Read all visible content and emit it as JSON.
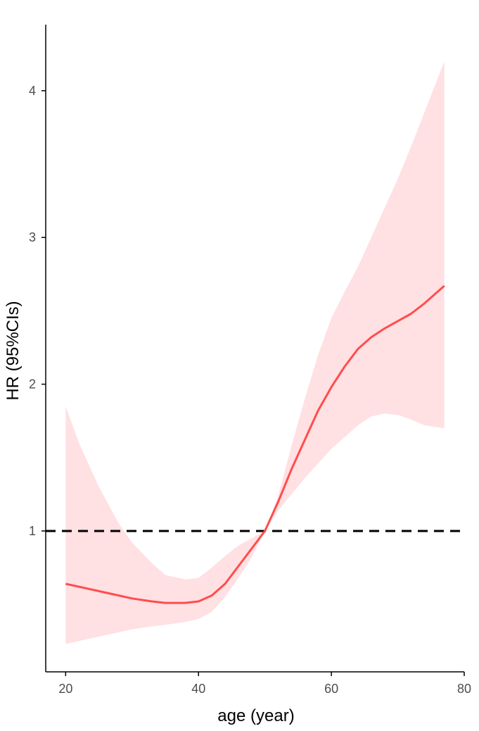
{
  "chart_data": {
    "type": "line",
    "title": "",
    "xlabel": "age (year)",
    "ylabel": "HR (95%CIs)",
    "xlim": [
      17,
      80
    ],
    "ylim": [
      0.04,
      4.45
    ],
    "x_ticks": [
      20,
      40,
      60,
      80
    ],
    "y_ticks": [
      1,
      2,
      3,
      4
    ],
    "x_tick_labels": [
      "20",
      "40",
      "60",
      "80"
    ],
    "y_tick_labels": [
      "1",
      "2",
      "3",
      "4"
    ],
    "reference_line": {
      "y": 1,
      "style": "dashed",
      "color": "#000000"
    },
    "grid": false,
    "colors": {
      "line": "#ff4d4d",
      "band": "#ffe0e3"
    },
    "series": [
      {
        "x": [
          20,
          22,
          25,
          28,
          30,
          33,
          35,
          38,
          40,
          42,
          44,
          46,
          48,
          50,
          52,
          54,
          56,
          58,
          60,
          62,
          64,
          66,
          68,
          70,
          72,
          74,
          77
        ],
        "y": [
          0.64,
          0.62,
          0.59,
          0.56,
          0.54,
          0.52,
          0.51,
          0.51,
          0.52,
          0.56,
          0.64,
          0.76,
          0.88,
          1.0,
          1.2,
          1.42,
          1.62,
          1.82,
          1.98,
          2.12,
          2.24,
          2.32,
          2.38,
          2.43,
          2.48,
          2.55,
          2.67
        ],
        "lower": [
          0.23,
          0.25,
          0.28,
          0.31,
          0.33,
          0.35,
          0.36,
          0.38,
          0.4,
          0.45,
          0.55,
          0.68,
          0.82,
          1.0,
          1.14,
          1.25,
          1.36,
          1.46,
          1.56,
          1.64,
          1.72,
          1.78,
          1.8,
          1.79,
          1.76,
          1.72,
          1.7
        ],
        "upper": [
          1.85,
          1.6,
          1.3,
          1.05,
          0.92,
          0.78,
          0.7,
          0.67,
          0.68,
          0.75,
          0.83,
          0.9,
          0.95,
          1.0,
          1.24,
          1.58,
          1.9,
          2.2,
          2.45,
          2.63,
          2.8,
          3.0,
          3.2,
          3.4,
          3.62,
          3.85,
          4.2
        ]
      }
    ]
  }
}
